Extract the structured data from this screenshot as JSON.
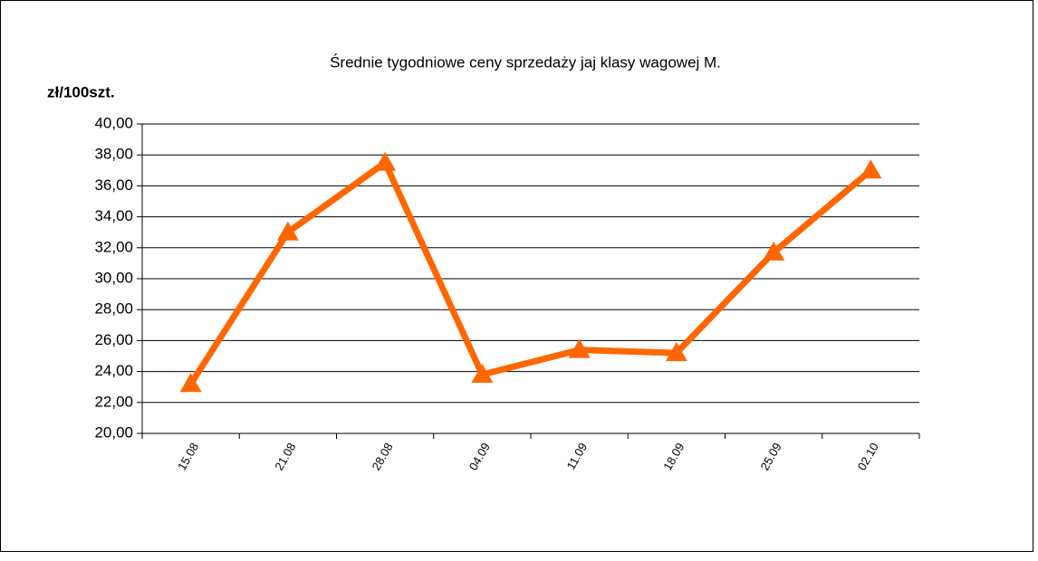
{
  "chart_data": {
    "type": "line",
    "title": "Średnie tygodniowe ceny sprzedaży jaj klasy wagowej M.",
    "y_label": "zł/100szt.",
    "categories": [
      "15.08",
      "21.08",
      "28.08",
      "04.09",
      "11.09",
      "18.09",
      "25.09",
      "02.10"
    ],
    "series": [
      {
        "name": null,
        "color": "#ff6600",
        "values": [
          23.2,
          33.0,
          37.5,
          23.8,
          25.4,
          25.2,
          31.7,
          37.0
        ]
      }
    ],
    "ylim": [
      20,
      40
    ],
    "yticks": [
      {
        "value": 20,
        "label": "20,00"
      },
      {
        "value": 22,
        "label": "22,00"
      },
      {
        "value": 24,
        "label": "24,00"
      },
      {
        "value": 26,
        "label": "26,00"
      },
      {
        "value": 28,
        "label": "28,00"
      },
      {
        "value": 30,
        "label": "30,00"
      },
      {
        "value": 32,
        "label": "32,00"
      },
      {
        "value": 34,
        "label": "34,00"
      },
      {
        "value": 36,
        "label": "36,00"
      },
      {
        "value": 38,
        "label": "38,00"
      },
      {
        "value": 40,
        "label": "40,00"
      }
    ],
    "grid": true,
    "legend": false
  }
}
